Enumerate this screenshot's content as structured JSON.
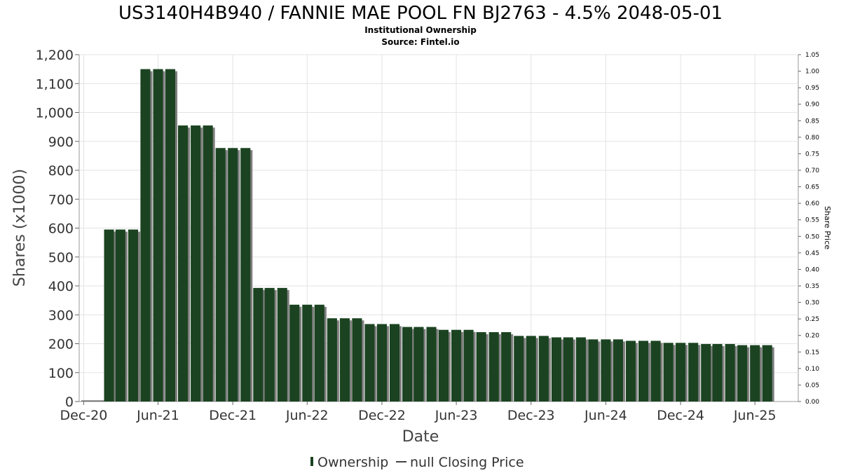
{
  "chart_data": {
    "type": "bar",
    "title": "US3140H4B940 / FANNIE MAE POOL FN BJ2763 - 4.5% 2048-05-01",
    "subtitle_lines": [
      "Institutional Ownership",
      "Source: Fintel.io"
    ],
    "xlabel": "Date",
    "ylabel": "Shares (x1000)",
    "y2label": "Share Price",
    "x_ticks": [
      "Dec-20",
      "Jun-21",
      "Dec-21",
      "Jun-22",
      "Dec-22",
      "Jun-23",
      "Dec-23",
      "Jun-24",
      "Dec-24",
      "Jun-25"
    ],
    "y_ticks": [
      "0",
      "100",
      "200",
      "300",
      "400",
      "500",
      "600",
      "700",
      "800",
      "900",
      "1,000",
      "1,100",
      "1,200"
    ],
    "y2_ticks": [
      "0.00",
      "0.05",
      "0.10",
      "0.15",
      "0.20",
      "0.25",
      "0.30",
      "0.35",
      "0.40",
      "0.45",
      "0.50",
      "0.55",
      "0.60",
      "0.65",
      "0.70",
      "0.75",
      "0.80",
      "0.85",
      "0.90",
      "0.95",
      "1.00",
      "1.05"
    ],
    "ylim": [
      0,
      1200
    ],
    "y2lim": [
      0,
      1.05
    ],
    "x_range": [
      "2020-11-20",
      "2025-09-15"
    ],
    "grid": true,
    "legend_position": "bottom",
    "series": [
      {
        "name": "Ownership",
        "color": "#1b4321",
        "shadow_color": "#808080",
        "x": [
          "2021-02-01",
          "2021-03-01",
          "2021-04-01",
          "2021-05-01",
          "2021-06-01",
          "2021-07-01",
          "2021-08-01",
          "2021-09-01",
          "2021-10-01",
          "2021-11-01",
          "2021-12-01",
          "2022-01-01",
          "2022-02-01",
          "2022-03-01",
          "2022-04-01",
          "2022-05-01",
          "2022-06-01",
          "2022-07-01",
          "2022-08-01",
          "2022-09-01",
          "2022-10-01",
          "2022-11-01",
          "2022-12-01",
          "2023-01-01",
          "2023-02-01",
          "2023-03-01",
          "2023-04-01",
          "2023-05-01",
          "2023-06-01",
          "2023-07-01",
          "2023-08-01",
          "2023-09-01",
          "2023-10-01",
          "2023-11-01",
          "2023-12-01",
          "2024-01-01",
          "2024-02-01",
          "2024-03-01",
          "2024-04-01",
          "2024-05-01",
          "2024-06-01",
          "2024-07-01",
          "2024-08-01",
          "2024-09-01",
          "2024-10-01",
          "2024-11-01",
          "2024-12-01",
          "2025-01-01",
          "2025-02-01",
          "2025-03-01",
          "2025-04-01",
          "2025-05-01",
          "2025-06-01",
          "2025-07-01"
        ],
        "values": [
          595,
          595,
          595,
          1150,
          1150,
          1150,
          955,
          955,
          955,
          877,
          877,
          877,
          393,
          393,
          393,
          335,
          335,
          335,
          288,
          288,
          288,
          268,
          268,
          268,
          258,
          258,
          258,
          248,
          248,
          248,
          240,
          240,
          240,
          227,
          227,
          227,
          222,
          222,
          222,
          215,
          215,
          215,
          210,
          210,
          210,
          203,
          203,
          203,
          199,
          199,
          199,
          195,
          195,
          195
        ]
      },
      {
        "name": "null Closing Price",
        "color": "#444444",
        "values": []
      }
    ]
  }
}
